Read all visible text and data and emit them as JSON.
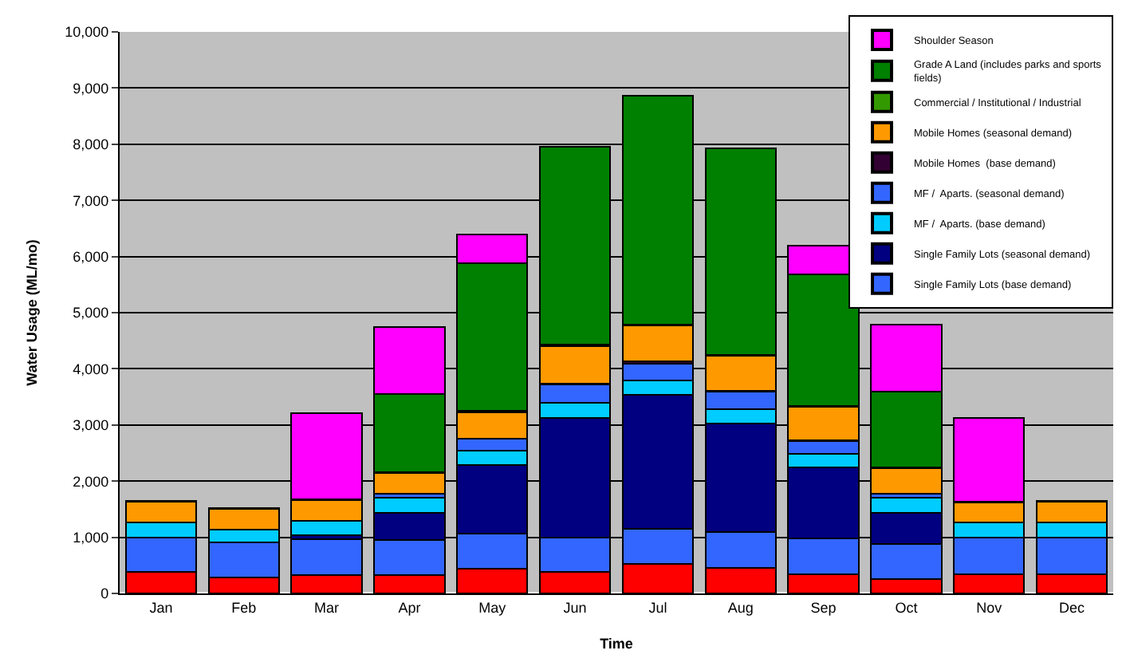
{
  "chart_data": {
    "type": "bar",
    "stacked": true,
    "xlabel": "Time",
    "ylabel": "Water Usage (ML/mo)",
    "categories": [
      "Jan",
      "Feb",
      "Mar",
      "Apr",
      "May",
      "Jun",
      "Jul",
      "Aug",
      "Sep",
      "Oct",
      "Nov",
      "Dec"
    ],
    "ylim": [
      0,
      10000
    ],
    "yticks": [
      {
        "value": 0,
        "label": "0"
      },
      {
        "value": 1000,
        "label": "1,000"
      },
      {
        "value": 2000,
        "label": "2,000"
      },
      {
        "value": 3000,
        "label": "3,000"
      },
      {
        "value": 4000,
        "label": "4,000"
      },
      {
        "value": 5000,
        "label": "5,000"
      },
      {
        "value": 6000,
        "label": "6,000"
      },
      {
        "value": 7000,
        "label": "7,000"
      },
      {
        "value": 8000,
        "label": "8,000"
      },
      {
        "value": 9000,
        "label": "9,000"
      },
      {
        "value": 10000,
        "label": "10,000"
      }
    ],
    "grid": "y",
    "legend": "top right",
    "series": [
      {
        "color": "#ff0000",
        "values": [
          380,
          280,
          330,
          320,
          440,
          380,
          520,
          460,
          340,
          260,
          340,
          340
        ]
      },
      {
        "name": "Single Family Lots (base demand)",
        "color": "#3366ff",
        "values": [
          620,
          630,
          630,
          630,
          620,
          620,
          630,
          630,
          640,
          620,
          660,
          660
        ]
      },
      {
        "name": "Single Family Lots (seasonal demand)",
        "color": "#000080",
        "values": [
          null,
          null,
          80,
          490,
          1230,
          2130,
          2380,
          1930,
          1260,
          550,
          null,
          null
        ]
      },
      {
        "name": "MF /  Aparts. (base demand)",
        "color": "#00ccff",
        "values": [
          270,
          230,
          250,
          260,
          250,
          270,
          260,
          260,
          250,
          270,
          260,
          270
        ]
      },
      {
        "name": "MF /  Aparts. (seasonal demand)",
        "color": "#3366ff",
        "values": [
          null,
          null,
          null,
          70,
          210,
          320,
          300,
          310,
          220,
          70,
          null,
          null
        ]
      },
      {
        "name": "Mobile Homes  (base demand)",
        "color": "#330033",
        "values": [
          null,
          null,
          null,
          null,
          null,
          20,
          40,
          20,
          20,
          null,
          null,
          null
        ]
      },
      {
        "name": "Mobile Homes (seasonal demand)",
        "color": "#ff9900",
        "values": [
          360,
          360,
          370,
          370,
          480,
          670,
          640,
          620,
          590,
          460,
          360,
          360
        ]
      },
      {
        "name": "Commercial / Institutional / Industrial",
        "color": "#339900",
        "values": [
          20,
          20,
          20,
          20,
          30,
          20,
          20,
          20,
          20,
          20,
          20,
          20
        ]
      },
      {
        "name": "Grade A Land (includes parks and sports fields)",
        "color": "#008000",
        "values": [
          null,
          null,
          null,
          1390,
          2620,
          3520,
          4080,
          3680,
          2340,
          1340,
          null,
          null
        ]
      },
      {
        "name": "Shoulder Season",
        "color": "#ff00ff",
        "values": [
          null,
          null,
          1530,
          1200,
          510,
          null,
          null,
          null,
          520,
          1190,
          1490,
          null
        ]
      }
    ]
  }
}
